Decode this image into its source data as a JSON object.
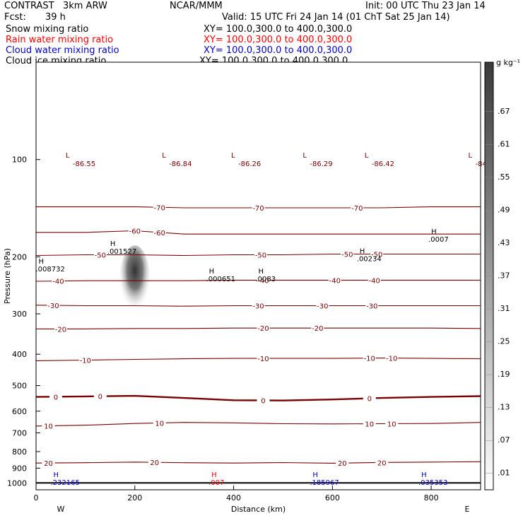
{
  "header": {
    "model": "CONTRAST   3km ARW",
    "center": "NCAR/MMM",
    "init": "Init: 00 UTC Thu 23 Jan 14",
    "fcst_label": "Fcst:",
    "fcst_value": "39 h",
    "valid": "Valid: 15 UTC Fri 24 Jan 14 (01 ChT Sat 25 Jan 14)"
  },
  "legend": [
    {
      "label": "Snow mixing ratio",
      "xy": "XY= 100.0,300.0 to 400.0,300.0",
      "color": "#000000"
    },
    {
      "label": "Rain water mixing ratio",
      "xy": "XY= 100.0,300.0 to 400.0,300.0",
      "color": "#ff0000"
    },
    {
      "label": "Cloud water mixing ratio",
      "xy": "XY= 100.0,300.0 to 400.0,300.0",
      "color": "#0000cc"
    },
    {
      "label": "Cloud ice mixing ratio",
      "xy": "XY= 100.0,300.0 to 400.0,300.0",
      "color": "#000000"
    }
  ],
  "chart_data": {
    "type": "line",
    "xlabel": "Distance (km)",
    "ylabel": "Pressure (hPa)",
    "xlim": [
      0,
      900
    ],
    "ylim": [
      50,
      1050
    ],
    "x_ticks": [
      0,
      200,
      400,
      600,
      800
    ],
    "y_ticks": [
      100,
      200,
      300,
      400,
      500,
      600,
      700,
      800,
      900,
      1000
    ],
    "y_scale": "log",
    "x_end_labels": {
      "left": "W",
      "right": "E"
    },
    "colorbar": {
      "unit": "g kg⁻¹",
      "labels": [
        ".67",
        ".61",
        ".55",
        ".49",
        ".43",
        ".37",
        ".31",
        ".25",
        ".19",
        ".13",
        ".07",
        ".01"
      ],
      "top_color": "#404040",
      "bottom_color": "#ffffff"
    },
    "temperature_contours": [
      {
        "level": -70,
        "label": "-70",
        "p": [
          140,
          140,
          140,
          141,
          141,
          141,
          141,
          141,
          140,
          140
        ],
        "labels_at_km": [
          250,
          450,
          650
        ]
      },
      {
        "level": -60,
        "label": "-60",
        "p": [
          168,
          168,
          166,
          170,
          170,
          170,
          170,
          170,
          170,
          170
        ],
        "labels_at_km": [
          200,
          250
        ]
      },
      {
        "level": -50,
        "label": "-50",
        "p": [
          198,
          197,
          197,
          198,
          197,
          197,
          196,
          196,
          196,
          196
        ],
        "labels_at_km": [
          130,
          455,
          630,
          690
        ]
      },
      {
        "level": -40,
        "label": "-40",
        "p": [
          238,
          237,
          237,
          237,
          236,
          236,
          236,
          236,
          236,
          236
        ],
        "labels_at_km": [
          45,
          460,
          605,
          685
        ]
      },
      {
        "level": -30,
        "label": "-30",
        "p": [
          282,
          283,
          283,
          284,
          283,
          283,
          283,
          283,
          283,
          283
        ],
        "labels_at_km": [
          35,
          450,
          580,
          680
        ]
      },
      {
        "level": -20,
        "label": "-20",
        "p": [
          334,
          334,
          333,
          333,
          332,
          332,
          332,
          332,
          332,
          333
        ],
        "labels_at_km": [
          50,
          460,
          570
        ]
      },
      {
        "level": -10,
        "label": "-10",
        "p": [
          419,
          417,
          415,
          413,
          412,
          412,
          412,
          411,
          412,
          413
        ],
        "labels_at_km": [
          100,
          460,
          675,
          720
        ]
      },
      {
        "level": 0,
        "label": "0",
        "p": [
          542,
          540,
          538,
          546,
          555,
          556,
          552,
          546,
          542,
          539
        ],
        "labels_at_km": [
          40,
          130,
          460,
          675
        ]
      },
      {
        "level": 10,
        "label": "10",
        "p": [
          667,
          663,
          655,
          650,
          652,
          656,
          657,
          656,
          655,
          650
        ],
        "labels_at_km": [
          25,
          250,
          675,
          720
        ]
      },
      {
        "level": 20,
        "label": "20",
        "p": [
          868,
          866,
          862,
          866,
          868,
          865,
          869,
          864,
          862,
          860
        ],
        "labels_at_km": [
          25,
          240,
          620,
          700
        ]
      }
    ],
    "highs": [
      {
        "label": "H",
        "value": ".001527",
        "x": 150,
        "p": 185,
        "color": "#000000"
      },
      {
        "label": "H",
        "value": ".008732",
        "x": 5,
        "p": 210,
        "color": "#000000"
      },
      {
        "label": "H",
        "value": ".000651",
        "x": 350,
        "p": 225,
        "color": "#000000"
      },
      {
        "label": "H",
        "value": ".0083",
        "x": 450,
        "p": 225,
        "color": "#000000"
      },
      {
        "label": "H",
        "value": ".00234",
        "x": 655,
        "p": 195,
        "color": "#000000"
      },
      {
        "label": "H",
        "value": ".0007",
        "x": 800,
        "p": 170,
        "color": "#000000"
      },
      {
        "label": "H",
        "value": ".232165",
        "x": 35,
        "p": 960,
        "color": "#0000cc"
      },
      {
        "label": "H",
        "value": ".185967",
        "x": 560,
        "p": 960,
        "color": "#0000cc"
      },
      {
        "label": "H",
        "value": ".035353",
        "x": 780,
        "p": 960,
        "color": "#0000cc"
      },
      {
        "label": "H",
        "value": ".007",
        "x": 355,
        "p": 960,
        "color": "#ff0000"
      }
    ],
    "lows": [
      {
        "label": "L",
        "value": "-86.55",
        "x": 60,
        "p": 92
      },
      {
        "label": "L",
        "value": "-86.84",
        "x": 255,
        "p": 92
      },
      {
        "label": "L",
        "value": "-86.26",
        "x": 395,
        "p": 92
      },
      {
        "label": "L",
        "value": "-86.29",
        "x": 540,
        "p": 92
      },
      {
        "label": "L",
        "value": "-86.42",
        "x": 665,
        "p": 92
      },
      {
        "label": "L",
        "value": "-84",
        "x": 875,
        "p": 92
      }
    ],
    "shading": [
      {
        "x": 200,
        "p_top": 190,
        "p_bottom": 300,
        "value": ".61"
      }
    ]
  }
}
